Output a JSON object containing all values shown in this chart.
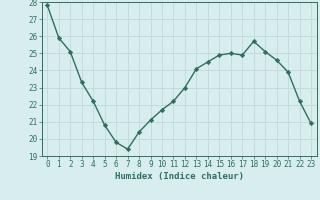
{
  "x": [
    0,
    1,
    2,
    3,
    4,
    5,
    6,
    7,
    8,
    9,
    10,
    11,
    12,
    13,
    14,
    15,
    16,
    17,
    18,
    19,
    20,
    21,
    22,
    23
  ],
  "y": [
    27.8,
    25.9,
    25.1,
    23.3,
    22.2,
    20.8,
    19.8,
    19.4,
    20.4,
    21.1,
    21.7,
    22.2,
    23.0,
    24.1,
    24.5,
    24.9,
    25.0,
    24.9,
    25.7,
    25.1,
    24.6,
    23.9,
    22.2,
    20.9
  ],
  "line_color": "#2d7060",
  "marker": "D",
  "markersize": 2.2,
  "linewidth": 1.0,
  "background_color": "#d8eeee",
  "grid_color": "#c0d8d8",
  "xlabel": "Humidex (Indice chaleur)",
  "xlabel_fontsize": 6.5,
  "tick_fontsize": 5.5,
  "ylim": [
    19,
    28
  ],
  "xlim": [
    -0.5,
    23.5
  ],
  "yticks": [
    19,
    20,
    21,
    22,
    23,
    24,
    25,
    26,
    27,
    28
  ],
  "xticks": [
    0,
    1,
    2,
    3,
    4,
    5,
    6,
    7,
    8,
    9,
    10,
    11,
    12,
    13,
    14,
    15,
    16,
    17,
    18,
    19,
    20,
    21,
    22,
    23
  ]
}
